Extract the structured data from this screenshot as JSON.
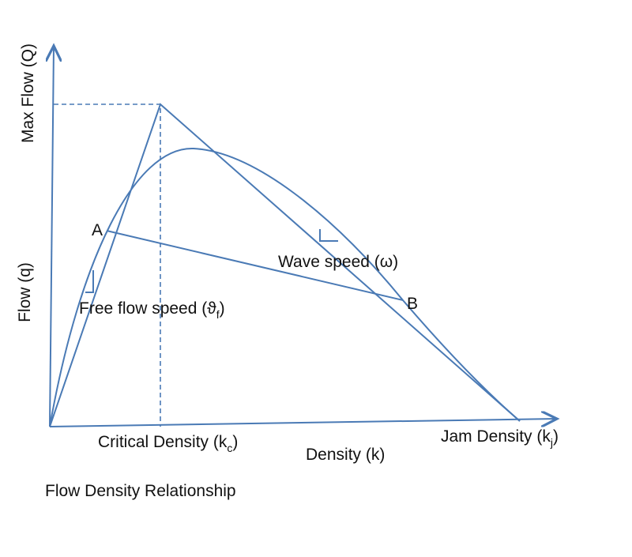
{
  "labels": {
    "max_flow": "Max Flow (Q)",
    "flow": "Flow (q)",
    "point_a": "A",
    "point_b": "B",
    "wave_speed": "Wave speed (ω)",
    "free_flow_speed": {
      "text": "Free flow speed (ϑ",
      "sub": "f",
      "end": ")"
    },
    "critical_density": {
      "text": "Critical Density (k",
      "sub": "c",
      "end": ")"
    },
    "density": "Density (k)",
    "jam_density": {
      "text": "Jam Density (k",
      "sub": "j",
      "end": ")"
    },
    "caption": "Flow Density Relationship"
  }
}
